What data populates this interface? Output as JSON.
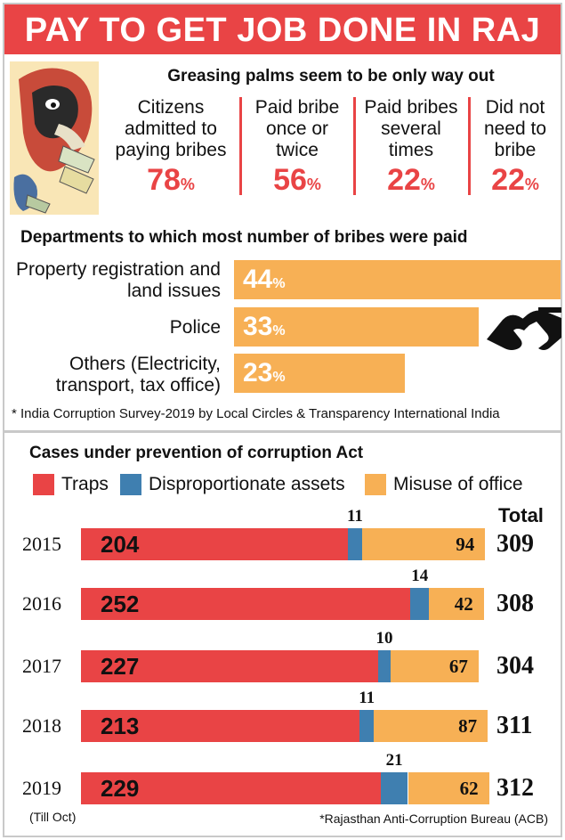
{
  "banner": {
    "title": "PAY TO GET JOB DONE IN RAJ"
  },
  "survey": {
    "subtitle": "Greasing palms seem to be only way out",
    "stats": [
      {
        "label": "Citizens admitted to paying bribes",
        "value": "78",
        "unit": "%"
      },
      {
        "label": "Paid bribe once or twice",
        "value": "56",
        "unit": "%"
      },
      {
        "label": "Paid bribes several times",
        "value": "22",
        "unit": "%"
      },
      {
        "label": "Did not need to bribe",
        "value": "22",
        "unit": "%"
      }
    ],
    "note": "* India Corruption Survey-2019 by Local Circles & Transparency International India"
  },
  "departments": {
    "title": "Departments to which most number of bribes were paid",
    "items": [
      {
        "label": "Property registration and land issues",
        "value": 44,
        "unit": "%"
      },
      {
        "label": "Police",
        "value": 33,
        "unit": "%"
      },
      {
        "label": "Others (Electricity, transport, tax office)",
        "value": 23,
        "unit": "%"
      }
    ]
  },
  "cases": {
    "title": "Cases under prevention of corruption Act",
    "total_header": "Total",
    "till_note": "(Till Oct)",
    "source_note": "*Rajasthan Anti-Corruption Bureau (ACB)"
  },
  "chart_data": {
    "type": "bar",
    "orientation": "horizontal",
    "stacked": true,
    "title": "Cases under prevention of corruption Act",
    "categories": [
      "2015",
      "2016",
      "2017",
      "2018",
      "2019"
    ],
    "series": [
      {
        "name": "Traps",
        "color": "#e94445",
        "values": [
          204,
          252,
          227,
          213,
          229
        ]
      },
      {
        "name": "Disproportionate assets",
        "color": "#3f7fb0",
        "values": [
          11,
          14,
          10,
          11,
          21
        ]
      },
      {
        "name": "Misuse of office",
        "color": "#f7b055",
        "values": [
          94,
          42,
          67,
          87,
          62
        ]
      }
    ],
    "totals": [
      309,
      308,
      304,
      311,
      312
    ],
    "legend": "top"
  },
  "colors": {
    "red": "#e94445",
    "blue": "#3f7fb0",
    "orange": "#f7b055"
  }
}
